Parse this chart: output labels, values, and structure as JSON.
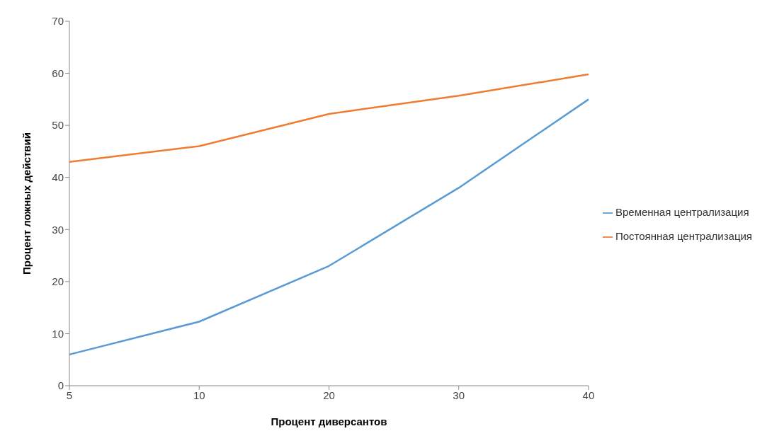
{
  "chart_data": {
    "type": "line",
    "xlabel": "Процент диверсантов",
    "ylabel": "Процент ложных действий",
    "categories": [
      "5",
      "10",
      "20",
      "30",
      "40"
    ],
    "series": [
      {
        "name": "Временная централизация",
        "color": "#5b9bd5",
        "values": [
          6,
          12.3,
          23,
          38,
          55
        ]
      },
      {
        "name": "Постоянная централизация",
        "color": "#ed7d31",
        "values": [
          43,
          46,
          52.2,
          55.7,
          59.8
        ]
      }
    ],
    "ylim": [
      0,
      70
    ],
    "yticks": [
      0,
      10,
      20,
      30,
      40,
      50,
      60,
      70
    ],
    "grid": false,
    "legend": "right",
    "marker": "none",
    "line_style": "solid"
  }
}
